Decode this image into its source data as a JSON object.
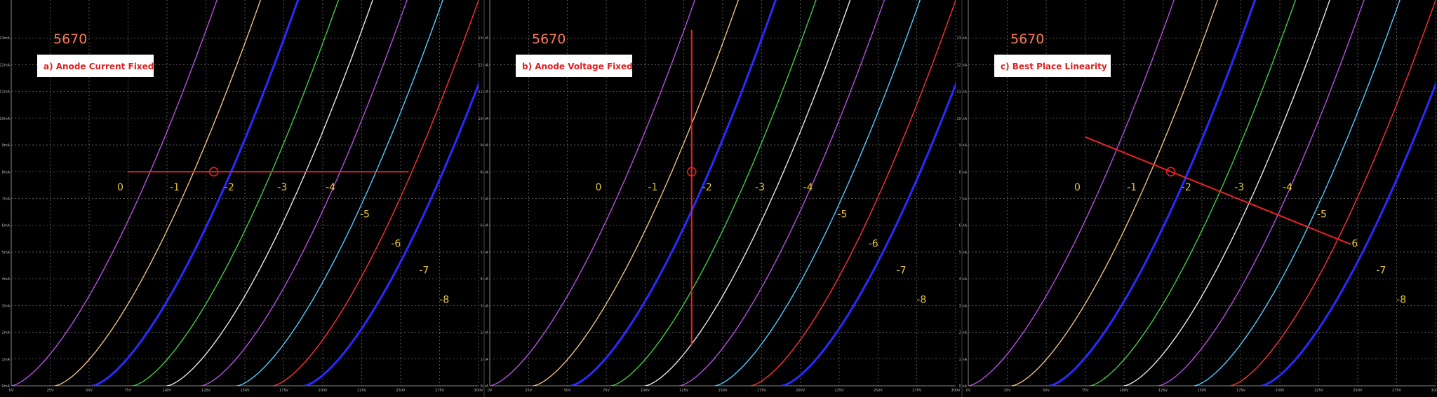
{
  "panels": [
    {
      "tube": "5670",
      "title": "a) Anode Current Fixed",
      "load_line": "horizontal"
    },
    {
      "tube": "5670",
      "title": "b) Anode Voltage Fixed",
      "load_line": "vertical"
    },
    {
      "tube": "5670",
      "title": "c) Best Place Linearity",
      "load_line": "sloped"
    }
  ],
  "chart_data": [
    {
      "type": "line",
      "title": "a) Anode Current Fixed",
      "xlim": [
        0,
        300
      ],
      "ylim": [
        0,
        14
      ],
      "x_ticks": [
        "0V",
        "25V",
        "50V",
        "75V",
        "100V",
        "125V",
        "150V",
        "175V",
        "200V",
        "225V",
        "250V",
        "275V",
        "300V"
      ],
      "y_ticks": [
        "0mA",
        "1mA",
        "2mA",
        "3mA",
        "4mA",
        "5mA",
        "6mA",
        "7mA",
        "8mA",
        "9mA",
        "10mA",
        "11mA",
        "12mA",
        "13mA"
      ],
      "grid": true,
      "series": [
        {
          "name": "0",
          "color": "#b84ee6",
          "x0": 0
        },
        {
          "name": "-1",
          "color": "#f0c080",
          "x0": 28
        },
        {
          "name": "-2",
          "color": "#2a2aff",
          "x0": 52
        },
        {
          "name": "-3",
          "color": "#44cc44",
          "x0": 78
        },
        {
          "name": "-4",
          "color": "#e8e8e8",
          "x0": 100
        },
        {
          "name": "-5",
          "color": "#b84ee6",
          "x0": 122
        },
        {
          "name": "-6",
          "color": "#55ccff",
          "x0": 145
        },
        {
          "name": "-7",
          "color": "#ff3333",
          "x0": 168
        },
        {
          "name": "-8",
          "color": "#2a2aff",
          "x0": 188
        }
      ],
      "operating_point": {
        "x": 130,
        "y": 8
      },
      "load_line": {
        "x": [
          75,
          255
        ],
        "y": [
          8,
          8
        ]
      },
      "curve_labels": [
        {
          "text": "0",
          "x": 70,
          "y": 7.3
        },
        {
          "text": "-1",
          "x": 105,
          "y": 7.3
        },
        {
          "text": "-2",
          "x": 140,
          "y": 7.3
        },
        {
          "text": "-3",
          "x": 174,
          "y": 7.3
        },
        {
          "text": "-4",
          "x": 205,
          "y": 7.3
        },
        {
          "text": "-5",
          "x": 227,
          "y": 6.3
        },
        {
          "text": "-6",
          "x": 247,
          "y": 5.2
        },
        {
          "text": "-7",
          "x": 265,
          "y": 4.2
        },
        {
          "text": "-8",
          "x": 278,
          "y": 3.1
        }
      ]
    },
    {
      "type": "line",
      "title": "b) Anode Voltage Fixed",
      "xlim": [
        0,
        300
      ],
      "ylim": [
        0,
        14
      ],
      "x_ticks": [
        "0V",
        "25V",
        "50V",
        "75V",
        "100V",
        "125V",
        "150V",
        "175V",
        "200V",
        "225V",
        "250V",
        "275V",
        "300V"
      ],
      "y_ticks": [
        "0mA",
        "1mA",
        "2mA",
        "3mA",
        "4mA",
        "5mA",
        "6mA",
        "7mA",
        "8mA",
        "9mA",
        "10mA",
        "11mA",
        "12mA",
        "13mA"
      ],
      "grid": true,
      "series": [
        {
          "name": "0",
          "color": "#b84ee6",
          "x0": 0
        },
        {
          "name": "-1",
          "color": "#f0c080",
          "x0": 28
        },
        {
          "name": "-2",
          "color": "#2a2aff",
          "x0": 52
        },
        {
          "name": "-3",
          "color": "#44cc44",
          "x0": 78
        },
        {
          "name": "-4",
          "color": "#e8e8e8",
          "x0": 100
        },
        {
          "name": "-5",
          "color": "#b84ee6",
          "x0": 122
        },
        {
          "name": "-6",
          "color": "#55ccff",
          "x0": 145
        },
        {
          "name": "-7",
          "color": "#ff3333",
          "x0": 168
        },
        {
          "name": "-8",
          "color": "#2a2aff",
          "x0": 188
        }
      ],
      "operating_point": {
        "x": 130,
        "y": 8
      },
      "load_line": {
        "x": [
          130,
          130
        ],
        "y": [
          1.5,
          13.3
        ]
      },
      "curve_labels": [
        {
          "text": "0",
          "x": 70,
          "y": 7.3
        },
        {
          "text": "-1",
          "x": 105,
          "y": 7.3
        },
        {
          "text": "-2",
          "x": 140,
          "y": 7.3
        },
        {
          "text": "-3",
          "x": 174,
          "y": 7.3
        },
        {
          "text": "-4",
          "x": 205,
          "y": 7.3
        },
        {
          "text": "-5",
          "x": 227,
          "y": 6.3
        },
        {
          "text": "-6",
          "x": 247,
          "y": 5.2
        },
        {
          "text": "-7",
          "x": 265,
          "y": 4.2
        },
        {
          "text": "-8",
          "x": 278,
          "y": 3.1
        }
      ]
    },
    {
      "type": "line",
      "title": "c) Best Place Linearity",
      "xlim": [
        0,
        300
      ],
      "ylim": [
        0,
        14
      ],
      "x_ticks": [
        "0V",
        "25V",
        "50V",
        "75V",
        "100V",
        "125V",
        "150V",
        "175V",
        "200V",
        "225V",
        "250V",
        "275V",
        "300V"
      ],
      "y_ticks": [
        "0mA",
        "1mA",
        "2mA",
        "3mA",
        "4mA",
        "5mA",
        "6mA",
        "7mA",
        "8mA",
        "9mA",
        "10mA",
        "11mA",
        "12mA",
        "13mA"
      ],
      "grid": true,
      "series": [
        {
          "name": "0",
          "color": "#b84ee6",
          "x0": 0
        },
        {
          "name": "-1",
          "color": "#f0c080",
          "x0": 28
        },
        {
          "name": "-2",
          "color": "#2a2aff",
          "x0": 52
        },
        {
          "name": "-3",
          "color": "#44cc44",
          "x0": 78
        },
        {
          "name": "-4",
          "color": "#e8e8e8",
          "x0": 100
        },
        {
          "name": "-5",
          "color": "#b84ee6",
          "x0": 122
        },
        {
          "name": "-6",
          "color": "#55ccff",
          "x0": 145
        },
        {
          "name": "-7",
          "color": "#ff3333",
          "x0": 168
        },
        {
          "name": "-8",
          "color": "#2a2aff",
          "x0": 188
        }
      ],
      "operating_point": {
        "x": 130,
        "y": 8
      },
      "load_line": {
        "x": [
          75,
          245
        ],
        "y": [
          9.3,
          5.3
        ]
      },
      "curve_labels": [
        {
          "text": "0",
          "x": 70,
          "y": 7.3
        },
        {
          "text": "-1",
          "x": 105,
          "y": 7.3
        },
        {
          "text": "-2",
          "x": 140,
          "y": 7.3
        },
        {
          "text": "-3",
          "x": 174,
          "y": 7.3
        },
        {
          "text": "-4",
          "x": 205,
          "y": 7.3
        },
        {
          "text": "-5",
          "x": 227,
          "y": 6.3
        },
        {
          "text": "-6",
          "x": 247,
          "y": 5.2
        },
        {
          "text": "-7",
          "x": 265,
          "y": 4.2
        },
        {
          "text": "-8",
          "x": 278,
          "y": 3.1
        }
      ]
    }
  ],
  "colors": {
    "background": "#000000",
    "grid": "#6a6a6a",
    "load_line": "#ee2222",
    "tube_label": "#ff7a55",
    "title_text": "#e02020",
    "title_box": "#ffffff",
    "curve_label": "#e8c838",
    "tick_text": "#bbbbbb"
  }
}
